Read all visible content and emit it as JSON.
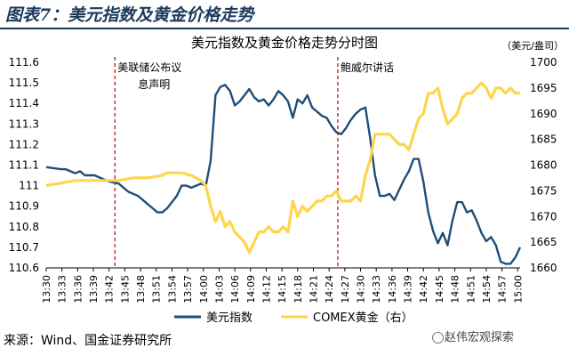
{
  "figure_title": "图表7：美元指数及黄金价格走势",
  "source": "来源：Wind、国金证券研究所",
  "watermark": "赵伟宏观探索",
  "colors": {
    "usd": "#1f4e79",
    "gold": "#ffd54a",
    "event_line": "#c00000",
    "title": "#1b3a5c"
  },
  "chart_data": {
    "type": "line",
    "title": "美元指数及黄金价格走势分时图",
    "right_unit": "（美元/盎司）",
    "x_tick_labels": [
      "13:30",
      "13:33",
      "13:36",
      "13:39",
      "13:42",
      "13:45",
      "13:48",
      "13:51",
      "13:54",
      "13:57",
      "14:00",
      "14:03",
      "14:06",
      "14:09",
      "14:12",
      "14:15",
      "14:18",
      "14:21",
      "14:24",
      "14:27",
      "14:30",
      "14:33",
      "14:36",
      "14:39",
      "14:42",
      "14:45",
      "14:48",
      "14:51",
      "14:54",
      "14:57",
      "15:00"
    ],
    "y_left": {
      "min": 110.6,
      "max": 111.6,
      "ticks": [
        "110.6",
        "110.7",
        "110.8",
        "110.9",
        "111",
        "111.1",
        "111.2",
        "111.3",
        "111.4",
        "111.5",
        "111.6"
      ]
    },
    "y_right": {
      "min": 1660,
      "max": 1700,
      "ticks": [
        "1660",
        "1665",
        "1670",
        "1675",
        "1680",
        "1685",
        "1690",
        "1695",
        "1700"
      ]
    },
    "annotations": [
      {
        "text_lines": [
          "美联储公布议",
          "息声明"
        ],
        "x_minute": 14.2
      },
      {
        "text_lines": [
          "鲍威尔讲话"
        ],
        "x_minute": 60.3
      }
    ],
    "series": [
      {
        "name": "美元指数",
        "axis": "left",
        "points": [
          [
            0,
            111.09
          ],
          [
            3,
            111.08
          ],
          [
            4,
            111.08
          ],
          [
            5,
            111.07
          ],
          [
            6,
            111.06
          ],
          [
            7,
            111.07
          ],
          [
            8,
            111.05
          ],
          [
            10,
            111.05
          ],
          [
            11,
            111.04
          ],
          [
            12,
            111.03
          ],
          [
            13,
            111.02
          ],
          [
            15,
            111.01
          ],
          [
            16,
            110.99
          ],
          [
            17,
            110.97
          ],
          [
            18,
            110.96
          ],
          [
            19,
            110.95
          ],
          [
            20,
            110.93
          ],
          [
            21,
            110.91
          ],
          [
            22,
            110.89
          ],
          [
            23,
            110.87
          ],
          [
            24,
            110.87
          ],
          [
            25,
            110.89
          ],
          [
            26,
            110.92
          ],
          [
            27,
            110.95
          ],
          [
            28,
            111.0
          ],
          [
            29,
            111.0
          ],
          [
            30,
            110.99
          ],
          [
            31,
            111.0
          ],
          [
            32,
            111.01
          ],
          [
            33,
            111.0
          ],
          [
            34,
            111.12
          ],
          [
            35,
            111.44
          ],
          [
            36,
            111.48
          ],
          [
            37,
            111.49
          ],
          [
            38,
            111.46
          ],
          [
            39,
            111.39
          ],
          [
            40,
            111.41
          ],
          [
            41,
            111.44
          ],
          [
            42,
            111.47
          ],
          [
            43,
            111.43
          ],
          [
            44,
            111.41
          ],
          [
            45,
            111.42
          ],
          [
            46,
            111.39
          ],
          [
            47,
            111.42
          ],
          [
            48,
            111.46
          ],
          [
            49,
            111.44
          ],
          [
            50,
            111.41
          ],
          [
            51,
            111.33
          ],
          [
            52,
            111.42
          ],
          [
            53,
            111.4
          ],
          [
            54,
            111.44
          ],
          [
            55,
            111.38
          ],
          [
            56,
            111.36
          ],
          [
            57,
            111.34
          ],
          [
            58,
            111.33
          ],
          [
            59,
            111.29
          ],
          [
            60,
            111.26
          ],
          [
            61,
            111.25
          ],
          [
            62,
            111.28
          ],
          [
            63,
            111.32
          ],
          [
            64,
            111.35
          ],
          [
            65,
            111.37
          ],
          [
            66,
            111.38
          ],
          [
            67,
            111.23
          ],
          [
            68,
            111.05
          ],
          [
            69,
            110.95
          ],
          [
            70,
            110.95
          ],
          [
            71,
            110.96
          ],
          [
            72,
            110.93
          ],
          [
            73,
            110.98
          ],
          [
            74,
            111.03
          ],
          [
            75,
            111.07
          ],
          [
            76,
            111.13
          ],
          [
            77,
            111.13
          ],
          [
            78,
            111.02
          ],
          [
            79,
            110.87
          ],
          [
            80,
            110.78
          ],
          [
            81,
            110.72
          ],
          [
            82,
            110.77
          ],
          [
            83,
            110.71
          ],
          [
            84,
            110.83
          ],
          [
            85,
            110.92
          ],
          [
            86,
            110.92
          ],
          [
            87,
            110.87
          ],
          [
            88,
            110.88
          ],
          [
            89,
            110.83
          ],
          [
            90,
            110.77
          ],
          [
            91,
            110.73
          ],
          [
            92,
            110.75
          ],
          [
            93,
            110.71
          ],
          [
            94,
            110.63
          ],
          [
            95,
            110.62
          ],
          [
            96,
            110.62
          ],
          [
            97,
            110.65
          ],
          [
            98,
            110.7
          ]
        ]
      },
      {
        "name": "COMEX黄金（右）",
        "axis": "right",
        "points": [
          [
            0,
            1676
          ],
          [
            3,
            1676.5
          ],
          [
            6,
            1677
          ],
          [
            9,
            1677
          ],
          [
            12,
            1677
          ],
          [
            15,
            1677
          ],
          [
            18,
            1677.5
          ],
          [
            21,
            1677.5
          ],
          [
            24,
            1678
          ],
          [
            25,
            1678.5
          ],
          [
            27,
            1678.5
          ],
          [
            28,
            1678.5
          ],
          [
            30,
            1678
          ],
          [
            32,
            1677
          ],
          [
            33,
            1676
          ],
          [
            34,
            1672
          ],
          [
            35,
            1669
          ],
          [
            36,
            1671
          ],
          [
            37,
            1668
          ],
          [
            38,
            1669
          ],
          [
            39,
            1667
          ],
          [
            40,
            1666
          ],
          [
            41,
            1665
          ],
          [
            42,
            1663
          ],
          [
            43,
            1665
          ],
          [
            44,
            1667
          ],
          [
            45,
            1667
          ],
          [
            46,
            1668
          ],
          [
            47,
            1667
          ],
          [
            48,
            1667
          ],
          [
            49,
            1668
          ],
          [
            50,
            1667
          ],
          [
            51,
            1673
          ],
          [
            52,
            1670
          ],
          [
            53,
            1672
          ],
          [
            54,
            1671
          ],
          [
            55,
            1672
          ],
          [
            56,
            1673
          ],
          [
            57,
            1673
          ],
          [
            58,
            1674
          ],
          [
            59,
            1674
          ],
          [
            60,
            1675
          ],
          [
            61,
            1673
          ],
          [
            62,
            1673
          ],
          [
            63,
            1673
          ],
          [
            64,
            1674
          ],
          [
            65,
            1673
          ],
          [
            66,
            1678
          ],
          [
            67,
            1681
          ],
          [
            68,
            1686
          ],
          [
            69,
            1686
          ],
          [
            70,
            1686
          ],
          [
            71,
            1686
          ],
          [
            72,
            1685
          ],
          [
            73,
            1684
          ],
          [
            74,
            1684
          ],
          [
            75,
            1683
          ],
          [
            76,
            1686
          ],
          [
            77,
            1689
          ],
          [
            78,
            1690
          ],
          [
            79,
            1694
          ],
          [
            80,
            1694
          ],
          [
            81,
            1695
          ],
          [
            82,
            1691
          ],
          [
            83,
            1688
          ],
          [
            84,
            1689
          ],
          [
            85,
            1690
          ],
          [
            86,
            1693
          ],
          [
            87,
            1694
          ],
          [
            88,
            1694
          ],
          [
            89,
            1695
          ],
          [
            90,
            1696
          ],
          [
            91,
            1695
          ],
          [
            92,
            1693
          ],
          [
            93,
            1695
          ],
          [
            94,
            1695
          ],
          [
            95,
            1694
          ],
          [
            96,
            1695
          ],
          [
            97,
            1694
          ],
          [
            98,
            1694
          ]
        ]
      }
    ],
    "legend": {
      "position": "bottom",
      "labels": [
        "美元指数",
        "COMEX黄金（右）"
      ]
    }
  }
}
